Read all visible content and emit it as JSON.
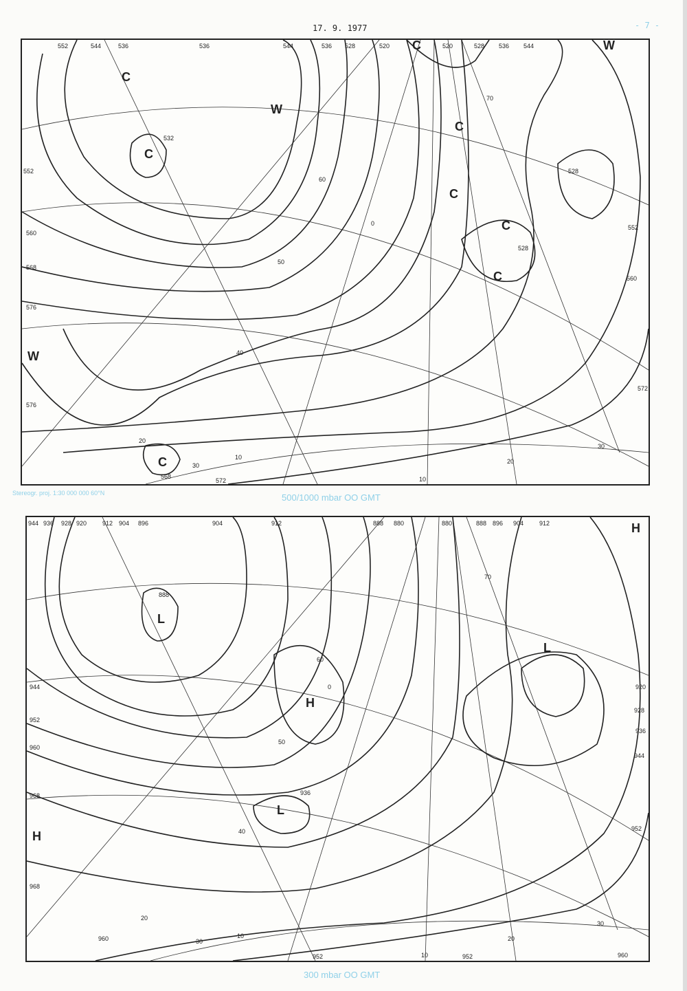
{
  "header": {
    "date": "17. 9. 1977",
    "page_number": "- 7 -"
  },
  "top_map": {
    "caption_left": "Stereogr. proj. 1:30 000 000   60°N",
    "caption": "500/1000 mbar  OO GMT",
    "centers": [
      "C",
      "C",
      "W",
      "C",
      "C",
      "C",
      "C",
      "C",
      "W",
      "W",
      "C"
    ],
    "contour_labels": [
      "552",
      "544",
      "536",
      "536",
      "544",
      "536",
      "528",
      "520",
      "520",
      "528",
      "536",
      "544",
      "532",
      "528",
      "560",
      "568",
      "576",
      "576",
      "552",
      "568",
      "572",
      "528",
      "560",
      "552",
      "572"
    ],
    "grid_labels": [
      "60",
      "50",
      "40",
      "30",
      "20",
      "10",
      "0",
      "10",
      "20",
      "30",
      "70"
    ]
  },
  "bottom_map": {
    "caption": "300 mbar  OO GMT",
    "centers": [
      "L",
      "H",
      "L",
      "H",
      "L",
      "H"
    ],
    "contour_labels": [
      "944",
      "936",
      "928",
      "920",
      "912",
      "904",
      "896",
      "904",
      "912",
      "888",
      "880",
      "880",
      "888",
      "896",
      "904",
      "912",
      "888",
      "944",
      "952",
      "960",
      "968",
      "968",
      "960",
      "952",
      "952",
      "960",
      "936",
      "920",
      "928",
      "936",
      "944",
      "952"
    ],
    "grid_labels": [
      "60",
      "50",
      "40",
      "30",
      "20",
      "10",
      "0",
      "10",
      "20",
      "30",
      "70"
    ]
  }
}
